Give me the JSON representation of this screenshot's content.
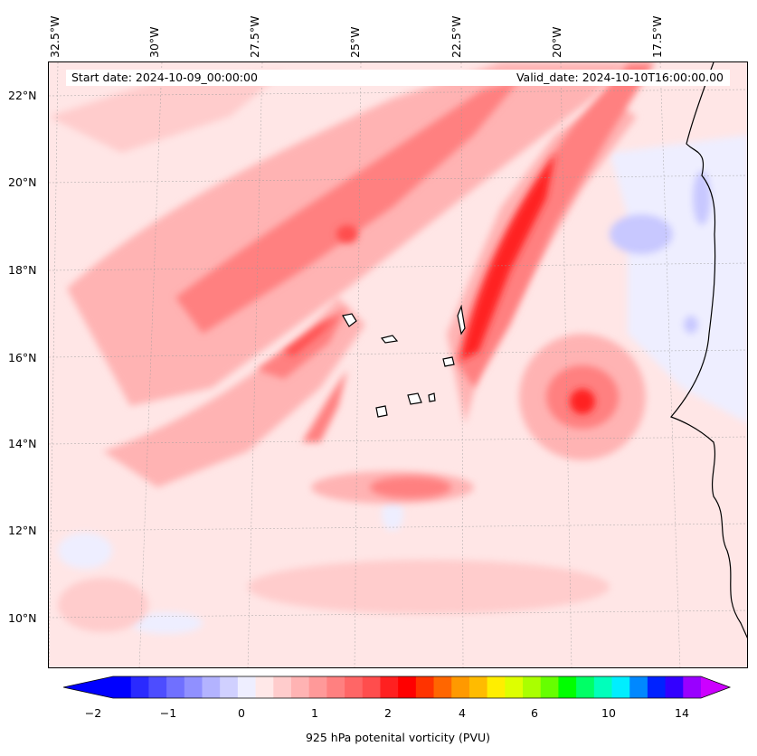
{
  "header": {
    "start_date": "Start date: 2024-10-09_00:00:00",
    "valid_date": "Valid_date: 2024-10-10T16:00:00.00"
  },
  "map": {
    "lon_ticks": [
      "32.5°W",
      "30°W",
      "27.5°W",
      "25°W",
      "22.5°W",
      "20°W",
      "17.5°W"
    ],
    "lat_ticks": [
      "22°N",
      "20°N",
      "18°N",
      "16°N",
      "14°N",
      "12°N",
      "10°N"
    ],
    "field": "925 hPa potential vorticity",
    "colors": {
      "background_pale": "#ffe6e6",
      "light_red": "#ffb3b3",
      "mid_red": "#ff6666",
      "red": "#ff2020",
      "pale_blue": "#eeeeff",
      "light_blue": "#c8c8ff",
      "coastline": "#000000"
    }
  },
  "colorbar": {
    "label": "925 hPa potenital vorticity (PVU)",
    "tick_labels": [
      "−2",
      "−1",
      "0",
      "1",
      "2",
      "4",
      "6",
      "10",
      "14"
    ],
    "colors": [
      "#0000ff",
      "#2a2aff",
      "#4d4dff",
      "#7070ff",
      "#9090ff",
      "#b3b3ff",
      "#d0d0ff",
      "#eeeeff",
      "#ffe8e8",
      "#ffcccc",
      "#ffb3b3",
      "#ff9999",
      "#ff8080",
      "#ff6666",
      "#ff4d4d",
      "#ff2020",
      "#ff0000",
      "#ff3300",
      "#ff6600",
      "#ff9900",
      "#ffbb00",
      "#ffee00",
      "#ddff00",
      "#aaff00",
      "#66ff00",
      "#00ff00",
      "#00ff66",
      "#00ffbb",
      "#00eeff",
      "#0088ff",
      "#0022ff",
      "#3300ff",
      "#9900ff"
    ],
    "extend_min_color": "#0000ff",
    "extend_max_color": "#cc00ff"
  }
}
